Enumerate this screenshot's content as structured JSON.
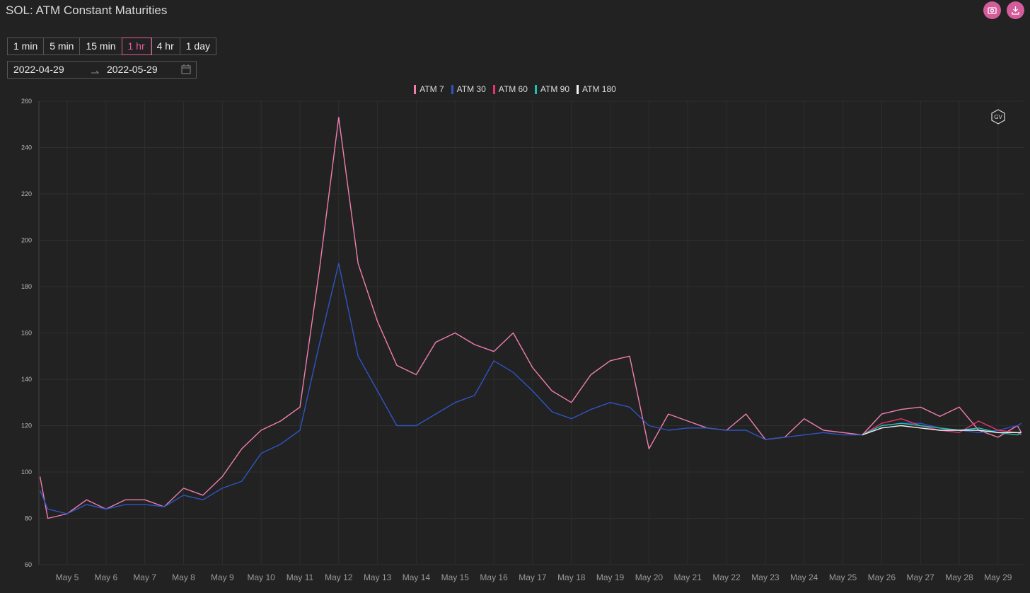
{
  "ui": {
    "title": "SOL: ATM Constant Maturities",
    "intervals": [
      "1 min",
      "5 min",
      "15 min",
      "1 hr",
      "4 hr",
      "1 day"
    ],
    "selected_interval": 3,
    "date_from": "2022-04-29",
    "date_to": "2022-05-29",
    "watermark": "GV"
  },
  "chart_data": {
    "type": "line",
    "grid": true,
    "legend": "top",
    "xlim": [
      4.27,
      29.66
    ],
    "xticks": [
      {
        "value": 5,
        "label": "May 5"
      },
      {
        "value": 6,
        "label": "May 6"
      },
      {
        "value": 7,
        "label": "May 7"
      },
      {
        "value": 8,
        "label": "May 8"
      },
      {
        "value": 9,
        "label": "May 9"
      },
      {
        "value": 10,
        "label": "May 10"
      },
      {
        "value": 11,
        "label": "May 11"
      },
      {
        "value": 12,
        "label": "May 12"
      },
      {
        "value": 13,
        "label": "May 13"
      },
      {
        "value": 14,
        "label": "May 14"
      },
      {
        "value": 15,
        "label": "May 15"
      },
      {
        "value": 16,
        "label": "May 16"
      },
      {
        "value": 17,
        "label": "May 17"
      },
      {
        "value": 18,
        "label": "May 18"
      },
      {
        "value": 19,
        "label": "May 19"
      },
      {
        "value": 20,
        "label": "May 20"
      },
      {
        "value": 21,
        "label": "May 21"
      },
      {
        "value": 22,
        "label": "May 22"
      },
      {
        "value": 23,
        "label": "May 23"
      },
      {
        "value": 24,
        "label": "May 24"
      },
      {
        "value": 25,
        "label": "May 25"
      },
      {
        "value": 26,
        "label": "May 26"
      },
      {
        "value": 27,
        "label": "May 27"
      },
      {
        "value": 28,
        "label": "May 28"
      },
      {
        "value": 29,
        "label": "May 29"
      }
    ],
    "ylim": [
      60,
      260
    ],
    "yticks": [
      60,
      80,
      100,
      120,
      140,
      160,
      180,
      200,
      220,
      240,
      260
    ],
    "x": [
      4.3,
      4.5,
      5,
      5.5,
      6,
      6.5,
      7,
      7.5,
      8,
      8.5,
      9,
      9.5,
      10,
      10.5,
      11,
      11.5,
      12,
      12.5,
      13,
      13.5,
      14,
      14.5,
      15,
      15.5,
      16,
      16.5,
      17,
      17.5,
      18,
      18.5,
      19,
      19.5,
      20,
      20.5,
      21,
      21.5,
      22,
      22.5,
      23,
      23.5,
      24,
      24.5,
      25,
      25.5,
      26,
      26.5,
      27,
      27.5,
      28,
      28.5,
      29,
      29.5,
      29.6
    ],
    "series": [
      {
        "name": "ATM 7",
        "color": "#f07fb0",
        "values": [
          98,
          80,
          82,
          88,
          84,
          88,
          88,
          85,
          93,
          90,
          98,
          110,
          118,
          122,
          128,
          187,
          253,
          190,
          165,
          146,
          142,
          156,
          160,
          155,
          152,
          160,
          145,
          135,
          130,
          142,
          148,
          150,
          110,
          125,
          122,
          119,
          118,
          125,
          114,
          115,
          123,
          118,
          117,
          116,
          125,
          127,
          128,
          124,
          128,
          118,
          115,
          120,
          117
        ]
      },
      {
        "name": "ATM 30",
        "color": "#2f55c4",
        "values": [
          92,
          84,
          82,
          86,
          84,
          86,
          86,
          85,
          90,
          88,
          93,
          96,
          108,
          112,
          118,
          155,
          190,
          150,
          135,
          120,
          120,
          125,
          130,
          133,
          148,
          143,
          135,
          126,
          123,
          127,
          130,
          128,
          120,
          118,
          119,
          119,
          118,
          118,
          114,
          115,
          116,
          117,
          116,
          116,
          120,
          121,
          121,
          119,
          118,
          117,
          118,
          120,
          121
        ]
      },
      {
        "name": "ATM 60",
        "color": "#e8336b",
        "values": [
          null,
          null,
          null,
          null,
          null,
          null,
          null,
          null,
          null,
          null,
          null,
          null,
          null,
          null,
          null,
          null,
          null,
          null,
          null,
          null,
          null,
          null,
          null,
          null,
          null,
          null,
          null,
          null,
          null,
          null,
          null,
          null,
          null,
          null,
          null,
          null,
          null,
          null,
          null,
          null,
          null,
          null,
          null,
          116,
          121,
          123,
          120,
          118,
          117,
          122,
          118,
          117,
          116
        ]
      },
      {
        "name": "ATM 90",
        "color": "#1fc0b0",
        "values": [
          null,
          null,
          null,
          null,
          null,
          null,
          null,
          null,
          null,
          null,
          null,
          null,
          null,
          null,
          null,
          null,
          null,
          null,
          null,
          null,
          null,
          null,
          null,
          null,
          null,
          null,
          null,
          null,
          null,
          null,
          null,
          null,
          null,
          null,
          null,
          null,
          null,
          null,
          null,
          null,
          null,
          null,
          null,
          116,
          120,
          121,
          120,
          119,
          118,
          119,
          117,
          116,
          117
        ]
      },
      {
        "name": "ATM 180",
        "color": "#f2f2f2",
        "values": [
          null,
          null,
          null,
          null,
          null,
          null,
          null,
          null,
          null,
          null,
          null,
          null,
          null,
          null,
          null,
          null,
          null,
          null,
          null,
          null,
          null,
          null,
          null,
          null,
          null,
          null,
          null,
          null,
          null,
          null,
          null,
          null,
          null,
          null,
          null,
          null,
          null,
          null,
          null,
          null,
          null,
          null,
          null,
          116,
          119,
          120,
          119,
          118,
          118,
          118,
          117,
          117,
          117
        ]
      }
    ]
  }
}
